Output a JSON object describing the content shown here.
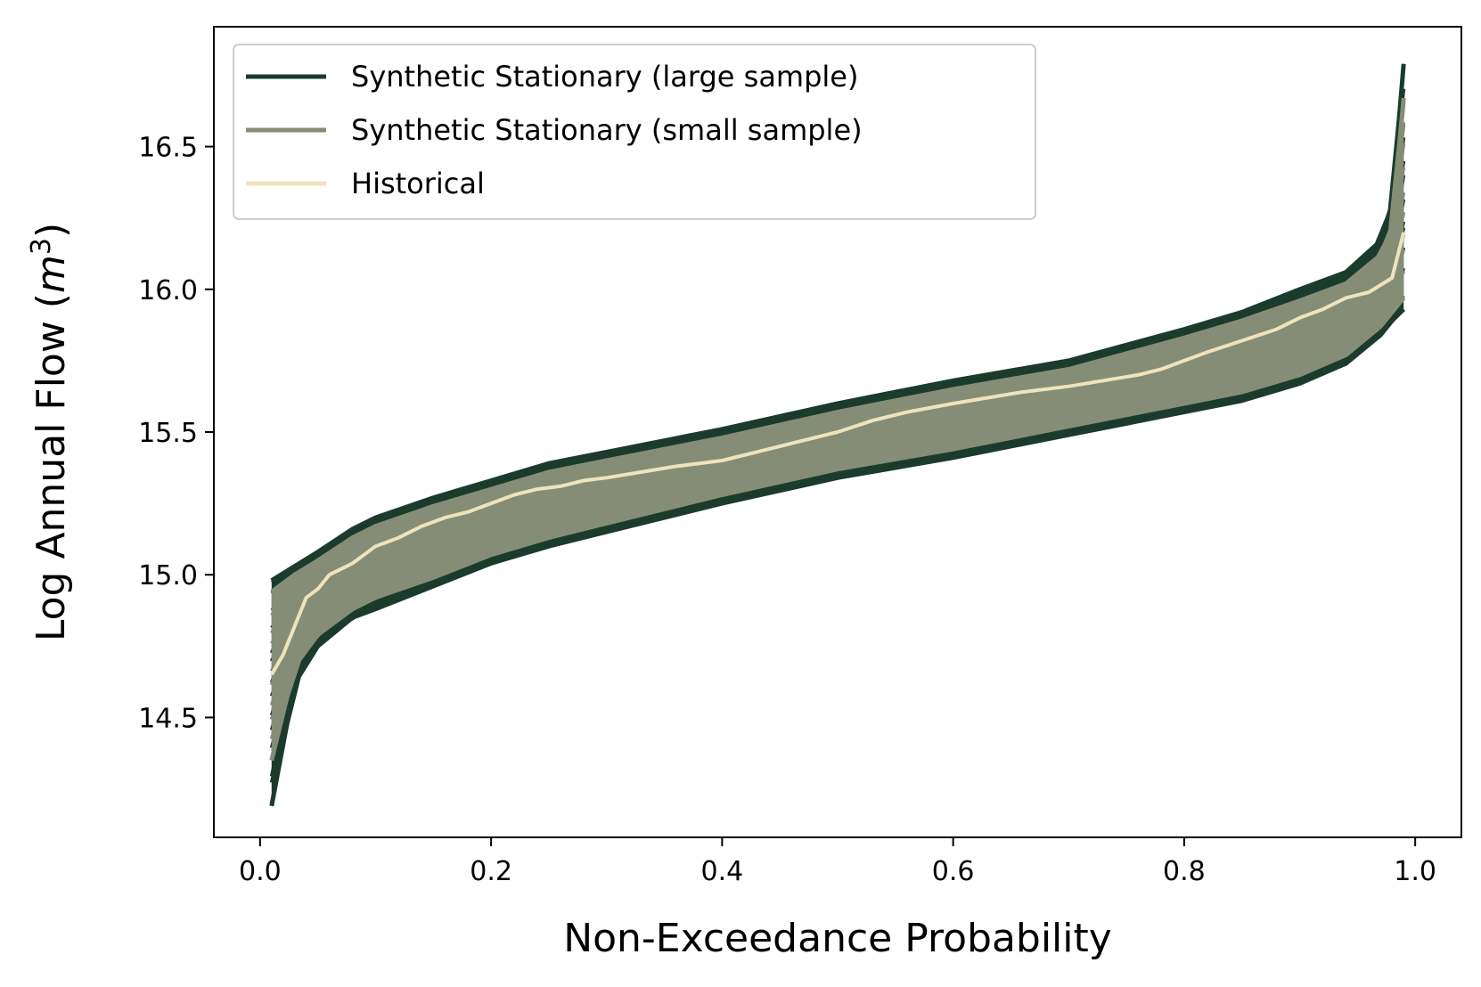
{
  "chart_data": {
    "type": "line",
    "title": "",
    "xlabel": "Non-Exceedance Probability",
    "ylabel_main": "Log Annual Flow (",
    "ylabel_unit_base": "m",
    "ylabel_unit_exp": "3",
    "ylabel_close": ")",
    "xlim": [
      -0.04,
      1.04
    ],
    "ylim": [
      14.08,
      16.92
    ],
    "x_ticks": [
      {
        "value": 0.0,
        "label": "0.0"
      },
      {
        "value": 0.2,
        "label": "0.2"
      },
      {
        "value": 0.4,
        "label": "0.4"
      },
      {
        "value": 0.6,
        "label": "0.6"
      },
      {
        "value": 0.8,
        "label": "0.8"
      },
      {
        "value": 1.0,
        "label": "1.0"
      }
    ],
    "y_ticks": [
      {
        "value": 14.5,
        "label": "14.5"
      },
      {
        "value": 15.0,
        "label": "15.0"
      },
      {
        "value": 15.5,
        "label": "15.5"
      },
      {
        "value": 16.0,
        "label": "16.0"
      },
      {
        "value": 16.5,
        "label": "16.5"
      }
    ],
    "grid": false,
    "legend_position": "top-left",
    "series": [
      {
        "name": "Synthetic Stationary (large sample)",
        "color": "#1b3b2d",
        "envelope": {
          "x": [
            0.01,
            0.03,
            0.05,
            0.08,
            0.1,
            0.15,
            0.2,
            0.25,
            0.3,
            0.4,
            0.5,
            0.6,
            0.7,
            0.8,
            0.85,
            0.9,
            0.94,
            0.97,
            0.98,
            0.99
          ],
          "upper": [
            14.98,
            15.03,
            15.08,
            15.16,
            15.2,
            15.27,
            15.33,
            15.39,
            15.43,
            15.51,
            15.6,
            15.68,
            15.75,
            15.86,
            15.92,
            16.0,
            16.06,
            16.17,
            16.3,
            16.79
          ],
          "lower": [
            14.19,
            14.62,
            14.75,
            14.85,
            14.88,
            14.96,
            15.04,
            15.1,
            15.15,
            15.25,
            15.34,
            15.41,
            15.49,
            15.57,
            15.61,
            15.67,
            15.74,
            15.84,
            15.89,
            15.93
          ]
        }
      },
      {
        "name": "Synthetic Stationary (small sample)",
        "color": "#858d76",
        "envelope": {
          "x": [
            0.01,
            0.03,
            0.05,
            0.08,
            0.1,
            0.15,
            0.2,
            0.25,
            0.3,
            0.4,
            0.5,
            0.6,
            0.7,
            0.8,
            0.85,
            0.9,
            0.94,
            0.97,
            0.98,
            0.99
          ],
          "upper": [
            14.94,
            15.0,
            15.05,
            15.13,
            15.17,
            15.24,
            15.3,
            15.36,
            15.4,
            15.48,
            15.57,
            15.65,
            15.72,
            15.83,
            15.89,
            15.96,
            16.02,
            16.12,
            16.22,
            16.67
          ],
          "lower": [
            14.35,
            14.68,
            14.79,
            14.88,
            14.92,
            14.99,
            15.07,
            15.13,
            15.18,
            15.28,
            15.37,
            15.44,
            15.52,
            15.6,
            15.64,
            15.7,
            15.77,
            15.87,
            15.92,
            15.97
          ]
        }
      },
      {
        "name": "Historical",
        "color": "#efe3bc",
        "x": [
          0.01,
          0.02,
          0.03,
          0.04,
          0.05,
          0.06,
          0.07,
          0.08,
          0.09,
          0.1,
          0.12,
          0.14,
          0.16,
          0.18,
          0.2,
          0.22,
          0.24,
          0.26,
          0.28,
          0.3,
          0.33,
          0.36,
          0.4,
          0.43,
          0.46,
          0.5,
          0.53,
          0.56,
          0.6,
          0.63,
          0.66,
          0.7,
          0.73,
          0.76,
          0.78,
          0.8,
          0.82,
          0.85,
          0.88,
          0.9,
          0.92,
          0.94,
          0.96,
          0.98,
          0.99
        ],
        "y": [
          14.65,
          14.72,
          14.82,
          14.92,
          14.95,
          15.0,
          15.02,
          15.04,
          15.07,
          15.1,
          15.13,
          15.17,
          15.2,
          15.22,
          15.25,
          15.28,
          15.3,
          15.31,
          15.33,
          15.34,
          15.36,
          15.38,
          15.4,
          15.43,
          15.46,
          15.5,
          15.54,
          15.57,
          15.6,
          15.62,
          15.64,
          15.66,
          15.68,
          15.7,
          15.72,
          15.75,
          15.78,
          15.82,
          15.86,
          15.9,
          15.93,
          15.97,
          15.99,
          16.04,
          16.2
        ]
      }
    ]
  }
}
